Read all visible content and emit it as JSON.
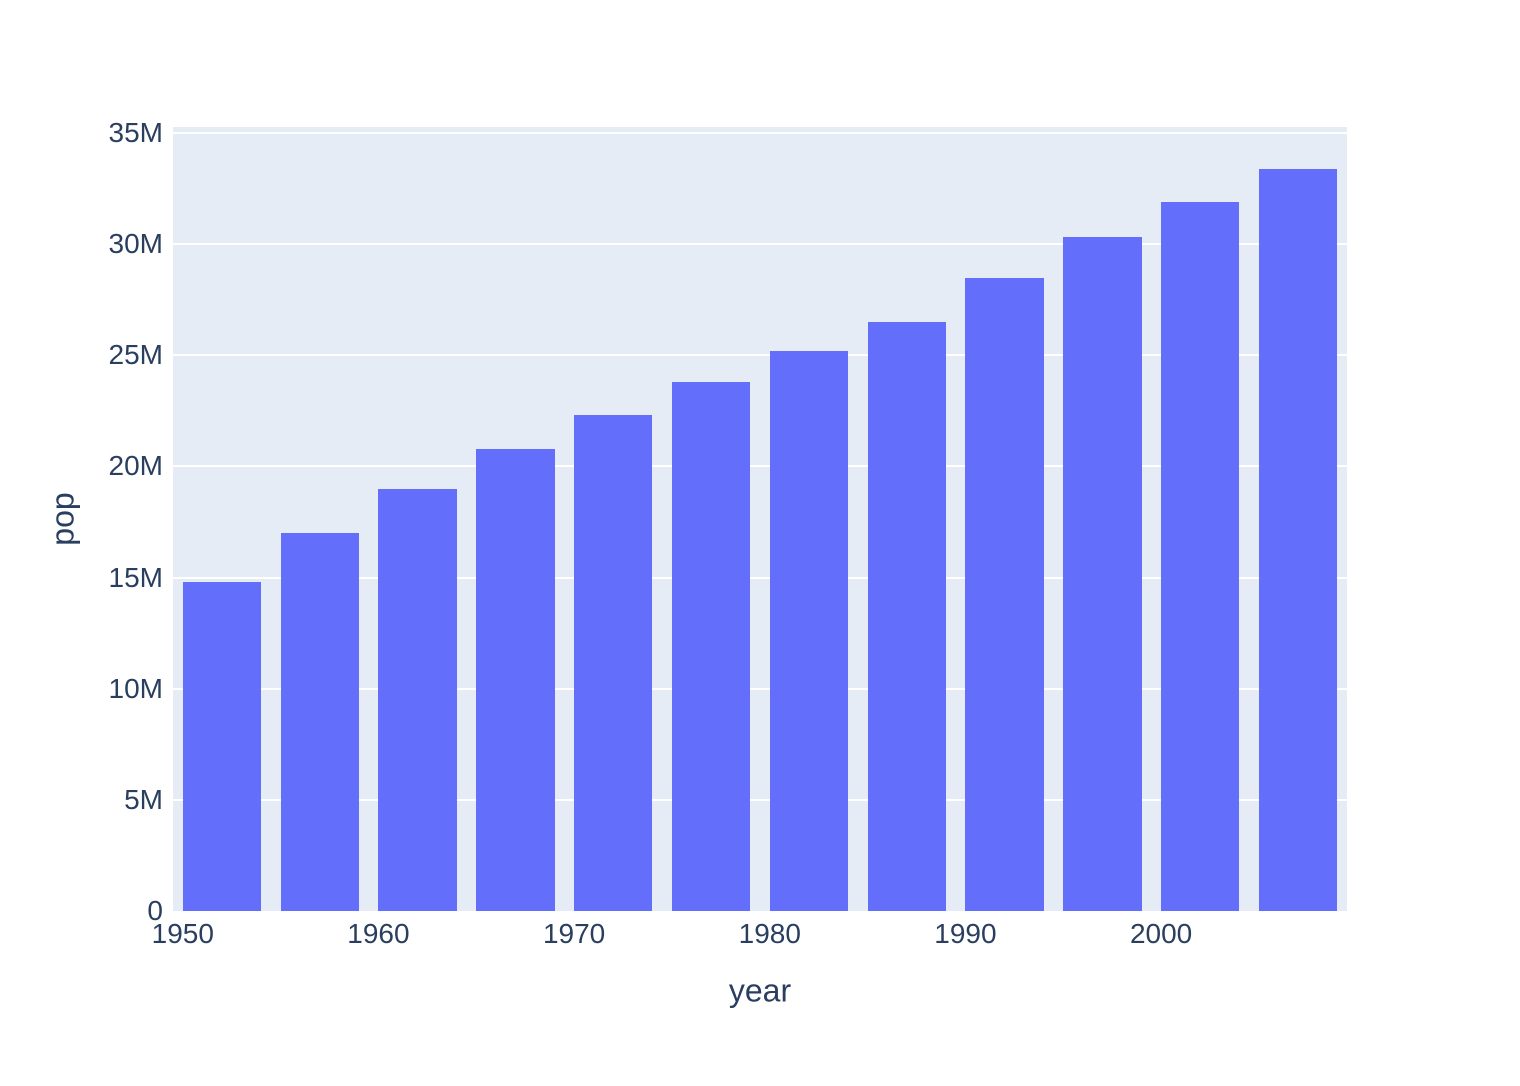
{
  "figure": {
    "background": "#ffffff"
  },
  "chart_data": {
    "type": "bar",
    "title": "",
    "xlabel": "year",
    "ylabel": "pop",
    "x": [
      1952,
      1957,
      1962,
      1967,
      1972,
      1977,
      1982,
      1987,
      1992,
      1997,
      2002,
      2007
    ],
    "values_millions": [
      14.8,
      17.0,
      19.0,
      20.8,
      22.3,
      23.8,
      25.2,
      26.5,
      28.5,
      30.3,
      31.9,
      33.4
    ],
    "value_unit": "M (millions of people)",
    "bar_width_in_x_units": 4,
    "xlim": [
      1949.5,
      2009.5
    ],
    "ylim_millions": [
      0,
      35.27
    ],
    "xticks": [
      {
        "v": 1950,
        "label": "1950"
      },
      {
        "v": 1960,
        "label": "1960"
      },
      {
        "v": 1970,
        "label": "1970"
      },
      {
        "v": 1980,
        "label": "1980"
      },
      {
        "v": 1990,
        "label": "1990"
      },
      {
        "v": 2000,
        "label": "2000"
      }
    ],
    "yticks": [
      {
        "v": 0,
        "label": "0"
      },
      {
        "v": 5,
        "label": "5M"
      },
      {
        "v": 10,
        "label": "10M"
      },
      {
        "v": 15,
        "label": "15M"
      },
      {
        "v": 20,
        "label": "20M"
      },
      {
        "v": 25,
        "label": "25M"
      },
      {
        "v": 30,
        "label": "30M"
      },
      {
        "v": 35,
        "label": "35M"
      }
    ],
    "grid": true,
    "legend_position": "none",
    "colors": {
      "bar": "#636efa",
      "plot_background": "#e5ecf6",
      "gridline": "#ffffff",
      "text": "#2a3f5f"
    }
  }
}
